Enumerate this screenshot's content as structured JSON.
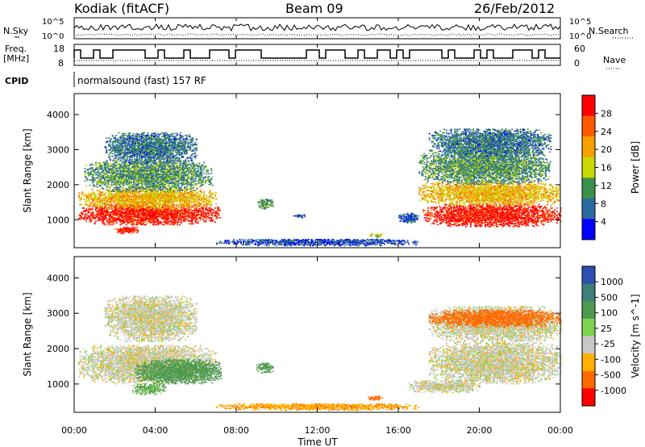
{
  "header": {
    "station": "Kodiak (fitACF)",
    "beam": "Beam 09",
    "date": "26/Feb/2012"
  },
  "top_panels": {
    "nsky_label": "N.Sky",
    "nsearch_label": "N.Search",
    "freq_label": "Freq.",
    "freq_unit": "[MHz]",
    "nave_label": "Nave",
    "cpid_label": "CPID",
    "cpid_text": "normalsound (fast) 157 RF",
    "noise_left_ticks": [
      "10^5",
      "10^0"
    ],
    "noise_right_ticks": [
      "10^5",
      "10^0"
    ],
    "freq_ticks": [
      "18",
      "8"
    ],
    "nave_ticks": [
      "60",
      "0"
    ]
  },
  "axes": {
    "ylabel": "Slant Range [km]",
    "yticks": [
      "4000",
      "3000",
      "2000",
      "1000"
    ],
    "xlabel": "Time UT",
    "xticks": [
      "00:00",
      "04:00",
      "08:00",
      "12:00",
      "16:00",
      "20:00",
      "00:00"
    ]
  },
  "colorbars": {
    "power": {
      "label": "Power [dB]",
      "ticks": [
        "28",
        "24",
        "20",
        "16",
        "12",
        "8",
        "4"
      ],
      "colors": [
        "#ff0000",
        "#ff5a00",
        "#f7a000",
        "#c8d800",
        "#3a8f4a",
        "#2c6aa0",
        "#0000ff"
      ]
    },
    "velocity": {
      "label": "Velocity [m s^-1]",
      "ticks": [
        "1000",
        "500",
        "100",
        "25",
        "-25",
        "-100",
        "-500",
        "-1000"
      ],
      "colors": [
        "#2c4fb0",
        "#3d7f7a",
        "#4f9a4f",
        "#7ed34e",
        "#c8c8c8",
        "#ffb000",
        "#ff6a00",
        "#ff0000"
      ]
    }
  },
  "chart_data": [
    {
      "type": "heatmap",
      "title": "Power [dB]",
      "xlabel": "Time UT",
      "ylabel": "Slant Range [km]",
      "xlim": [
        0,
        24
      ],
      "ylim": [
        200,
        4600
      ],
      "scale": [
        0,
        30
      ],
      "blobs": [
        {
          "t0": 0.2,
          "t1": 7.2,
          "r0": 850,
          "r1": 1450,
          "value": 28
        },
        {
          "t0": 0.2,
          "t1": 7.0,
          "r0": 1300,
          "r1": 1900,
          "value": 18
        },
        {
          "t0": 0.5,
          "t1": 6.8,
          "r0": 1800,
          "r1": 2700,
          "value": 10
        },
        {
          "t0": 1.5,
          "t1": 6.0,
          "r0": 2600,
          "r1": 3500,
          "value": 8
        },
        {
          "t0": 2.0,
          "t1": 3.2,
          "r0": 600,
          "r1": 800,
          "value": 28
        },
        {
          "t0": 9.0,
          "t1": 9.8,
          "r0": 1300,
          "r1": 1600,
          "value": 10
        },
        {
          "t0": 10.8,
          "t1": 11.4,
          "r0": 1050,
          "r1": 1150,
          "value": 6
        },
        {
          "t0": 14.5,
          "t1": 15.2,
          "r0": 480,
          "r1": 600,
          "value": 14
        },
        {
          "t0": 16.0,
          "t1": 17.0,
          "r0": 900,
          "r1": 1200,
          "value": 6
        },
        {
          "t0": 17.2,
          "t1": 24.0,
          "r0": 800,
          "r1": 1450,
          "value": 28
        },
        {
          "t0": 17.0,
          "t1": 24.0,
          "r0": 1400,
          "r1": 2100,
          "value": 18
        },
        {
          "t0": 17.0,
          "t1": 23.5,
          "r0": 2000,
          "r1": 3000,
          "value": 10
        },
        {
          "t0": 17.5,
          "t1": 23.5,
          "r0": 2800,
          "r1": 3600,
          "value": 8
        },
        {
          "t0": 7.0,
          "t1": 17.0,
          "r0": 250,
          "r1": 450,
          "value": 5
        }
      ]
    },
    {
      "type": "heatmap",
      "title": "Velocity [m s^-1]",
      "xlabel": "Time UT",
      "ylabel": "Slant Range [km]",
      "xlim": [
        0,
        24
      ],
      "ylim": [
        200,
        4600
      ],
      "scale": [
        -1000,
        1000
      ],
      "blobs": [
        {
          "t0": 0.2,
          "t1": 7.0,
          "r0": 1000,
          "r1": 2100,
          "value": 0
        },
        {
          "t0": 3.0,
          "t1": 7.2,
          "r0": 1000,
          "r1": 1700,
          "value": 200
        },
        {
          "t0": 2.8,
          "t1": 4.5,
          "r0": 700,
          "r1": 1000,
          "value": 60
        },
        {
          "t0": 1.5,
          "t1": 6.0,
          "r0": 2200,
          "r1": 3500,
          "value": 0
        },
        {
          "t0": 9.0,
          "t1": 9.8,
          "r0": 1300,
          "r1": 1600,
          "value": 200
        },
        {
          "t0": 14.5,
          "t1": 15.2,
          "r0": 520,
          "r1": 650,
          "value": -150
        },
        {
          "t0": 16.5,
          "t1": 20.0,
          "r0": 750,
          "r1": 1100,
          "value": 0
        },
        {
          "t0": 17.5,
          "t1": 24.0,
          "r0": 1000,
          "r1": 2200,
          "value": 0
        },
        {
          "t0": 17.5,
          "t1": 24.0,
          "r0": 2200,
          "r1": 3200,
          "value": 0
        },
        {
          "t0": 17.5,
          "t1": 24.0,
          "r0": 2600,
          "r1": 3100,
          "value": -300
        },
        {
          "t0": 7.0,
          "t1": 17.0,
          "r0": 250,
          "r1": 450,
          "value": -80
        }
      ]
    }
  ]
}
